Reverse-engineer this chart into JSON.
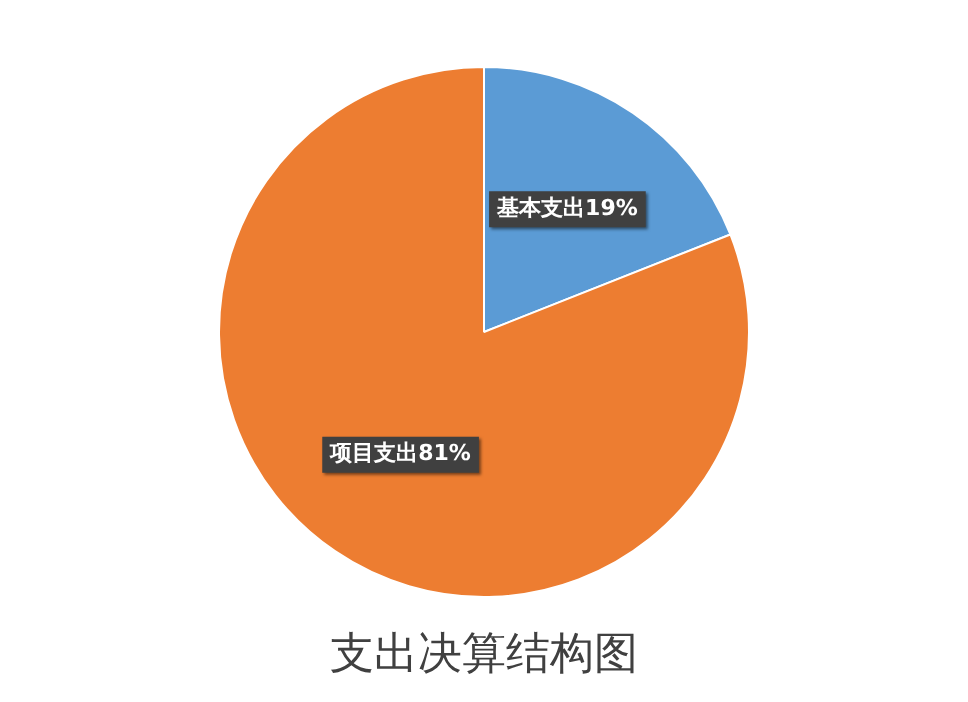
{
  "chart_data": {
    "type": "pie",
    "title": "支出决算结构图",
    "categories": [
      "基本支出",
      "项目支出"
    ],
    "values": [
      19,
      81
    ],
    "colors": [
      "#5b9bd5",
      "#ed7d31"
    ],
    "value_labels": [
      "19%",
      "81%"
    ],
    "legend": false
  }
}
